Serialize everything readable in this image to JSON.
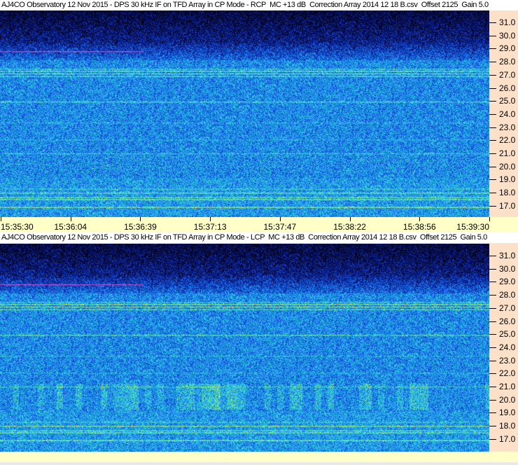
{
  "panels": [
    {
      "title": "AJ4CO Observatory 12 Nov 2015 - DPS 30 kHz IF on TFD Array in CP Mode - RCP  MC +13 dB  Correction Array 2014 12 18 B.csv  Offset 2125  Gain 5.0",
      "polarization": "RCP"
    },
    {
      "title": "AJ4CO Observatory 12 Nov 2015 - DPS 30 kHz IF on TFD Array in CP Mode - LCP  MC +13 dB  Correction Array 2014 12 18 B.csv  Offset 2125  Gain 5.0",
      "polarization": "LCP"
    }
  ],
  "frequency_ticks": [
    "31.0",
    "30.0",
    "29.0",
    "28.0",
    "27.0",
    "26.0",
    "25.0",
    "24.0",
    "23.0",
    "22.0",
    "21.0",
    "20.0",
    "19.0",
    "18.0",
    "17.0"
  ],
  "time_ticks": [
    "15:35:30",
    "15:36:04",
    "15:36:39",
    "15:37:13",
    "15:37:47",
    "15:38:22",
    "15:38:56",
    "15:39:30"
  ],
  "colors": {
    "axis_bg": "#fce0c8",
    "time_axis_bg": "#ffffc8"
  }
}
